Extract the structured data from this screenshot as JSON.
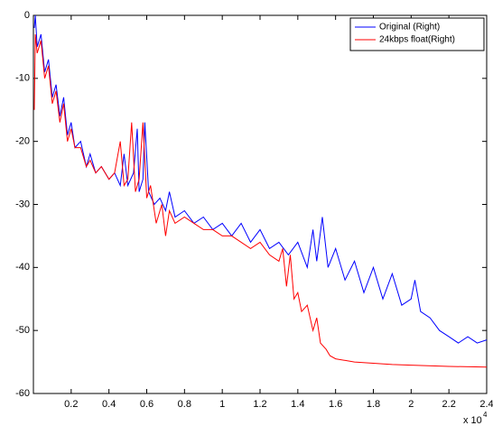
{
  "chart_data": {
    "type": "line",
    "x_scale_base": "x 10",
    "x_scale_exponent": "4",
    "xlim": [
      0,
      2.4
    ],
    "xticks": [
      0.2,
      0.4,
      0.6,
      0.8,
      1,
      1.2,
      1.4,
      1.6,
      1.8,
      2,
      2.2,
      2.4
    ],
    "ylim": [
      -60,
      0
    ],
    "yticks": [
      -60,
      -50,
      -40,
      -30,
      -20,
      -10,
      0
    ],
    "legend": "upper-right",
    "grid": false,
    "series": [
      {
        "name": "Original (Right)",
        "color": "#0000ff",
        "x": [
          0.005,
          0.01,
          0.02,
          0.04,
          0.06,
          0.08,
          0.1,
          0.12,
          0.14,
          0.16,
          0.18,
          0.2,
          0.22,
          0.25,
          0.28,
          0.3,
          0.33,
          0.36,
          0.4,
          0.43,
          0.46,
          0.48,
          0.5,
          0.53,
          0.55,
          0.56,
          0.58,
          0.59,
          0.61,
          0.64,
          0.67,
          0.7,
          0.72,
          0.75,
          0.8,
          0.85,
          0.9,
          0.95,
          1.0,
          1.05,
          1.1,
          1.15,
          1.2,
          1.25,
          1.3,
          1.35,
          1.4,
          1.45,
          1.48,
          1.5,
          1.53,
          1.56,
          1.6,
          1.65,
          1.7,
          1.75,
          1.8,
          1.85,
          1.9,
          1.95,
          2.0,
          2.02,
          2.05,
          2.1,
          2.15,
          2.2,
          2.25,
          2.3,
          2.35,
          2.4
        ],
        "values": [
          -2,
          0,
          -5,
          -3,
          -9,
          -7,
          -13,
          -11,
          -16,
          -13,
          -19,
          -17,
          -21,
          -20,
          -24,
          -22,
          -25,
          -24,
          -26,
          -25,
          -27,
          -22,
          -27,
          -25,
          -18,
          -28,
          -26,
          -17,
          -28,
          -30,
          -29,
          -31,
          -28,
          -32,
          -31,
          -33,
          -32,
          -34,
          -33,
          -35,
          -33,
          -36,
          -34,
          -37,
          -36,
          -38,
          -36,
          -40,
          -34,
          -39,
          -32,
          -40,
          -37,
          -42,
          -39,
          -44,
          -40,
          -45,
          -41,
          -46,
          -45,
          -42,
          -47,
          -48,
          -50,
          -51,
          -52,
          -51,
          -52,
          -51.5
        ]
      },
      {
        "name": "24kbps float(Right)",
        "color": "#ff0000",
        "x": [
          0.005,
          0.01,
          0.02,
          0.04,
          0.06,
          0.08,
          0.1,
          0.12,
          0.14,
          0.16,
          0.18,
          0.2,
          0.22,
          0.25,
          0.28,
          0.3,
          0.33,
          0.36,
          0.4,
          0.43,
          0.46,
          0.48,
          0.5,
          0.52,
          0.54,
          0.56,
          0.58,
          0.6,
          0.62,
          0.65,
          0.68,
          0.7,
          0.72,
          0.75,
          0.8,
          0.85,
          0.9,
          0.95,
          1.0,
          1.05,
          1.1,
          1.15,
          1.2,
          1.25,
          1.3,
          1.32,
          1.34,
          1.36,
          1.38,
          1.4,
          1.42,
          1.45,
          1.48,
          1.5,
          1.52,
          1.55,
          1.57,
          1.6,
          1.7,
          1.8,
          1.9,
          2.0,
          2.2,
          2.4
        ],
        "values": [
          -15,
          -3,
          -6,
          -4,
          -10,
          -8,
          -14,
          -12,
          -17,
          -14,
          -20,
          -18,
          -21,
          -21,
          -24,
          -23,
          -25,
          -24,
          -26,
          -25,
          -20,
          -27,
          -26,
          -17,
          -28,
          -26,
          -17,
          -29,
          -27,
          -33,
          -30,
          -35,
          -31,
          -33,
          -32,
          -33,
          -34,
          -34,
          -35,
          -35,
          -36,
          -37,
          -36,
          -38,
          -39,
          -37,
          -43,
          -38,
          -45,
          -44,
          -47,
          -46,
          -50,
          -48,
          -52,
          -53,
          -54,
          -54.5,
          -55,
          -55.2,
          -55.4,
          -55.5,
          -55.7,
          -55.8
        ]
      }
    ]
  }
}
